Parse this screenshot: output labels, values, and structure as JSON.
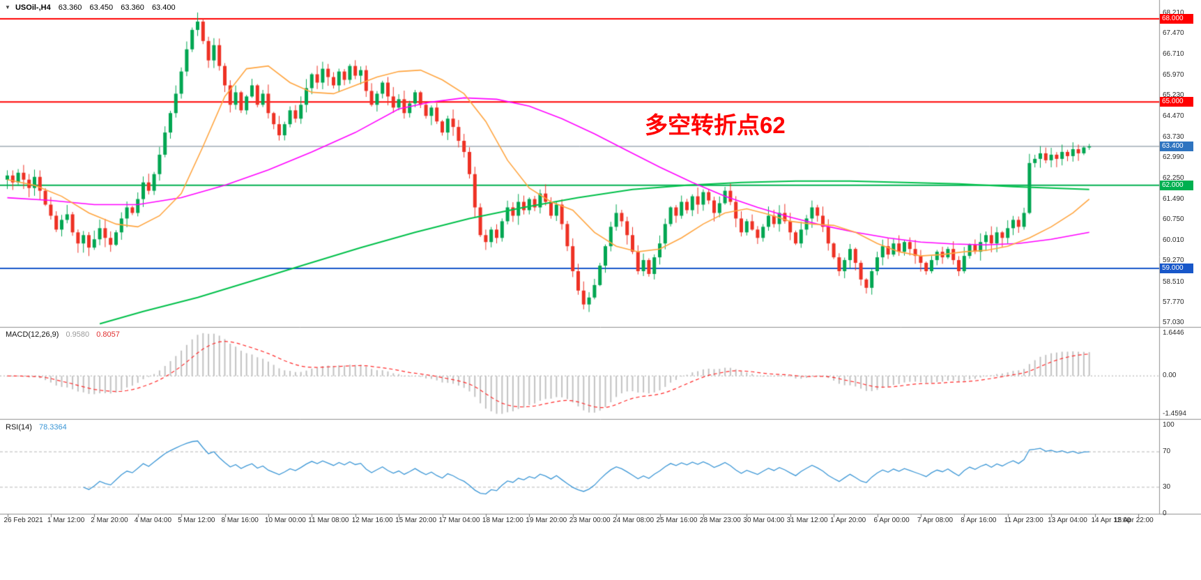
{
  "header": {
    "dropdown_icon": "▼",
    "symbol": "USOil-,H4",
    "open": "63.360",
    "high": "63.450",
    "low": "63.360",
    "close": "63.400"
  },
  "annotation": {
    "text": "多空转折点62",
    "color": "#ff0000"
  },
  "colors": {
    "candle_up": "#00a651",
    "candle_down": "#ee3124",
    "ma_orange": "#ffa53f",
    "ma_magenta": "#ff00ff",
    "ma_green": "#00c04a",
    "macd_histogram": "#c2c2c2",
    "macd_signal": "#ff2a2a",
    "rsi_line": "#3a96d6",
    "current_price_line": "#708090"
  },
  "chart_data": {
    "type": "candlestick",
    "title": "USOil-,H4",
    "timeframe": "H4",
    "quote": {
      "open": 63.36,
      "high": 63.45,
      "low": 63.36,
      "close": 63.4
    },
    "x_labels": [
      "26 Feb 2021",
      "1 Mar 12:00",
      "2 Mar 20:00",
      "4 Mar 04:00",
      "5 Mar 12:00",
      "8 Mar 16:00",
      "10 Mar 00:00",
      "11 Mar 08:00",
      "12 Mar 16:00",
      "15 Mar 20:00",
      "17 Mar 04:00",
      "18 Mar 12:00",
      "19 Mar 20:00",
      "23 Mar 00:00",
      "24 Mar 08:00",
      "25 Mar 16:00",
      "28 Mar 23:00",
      "30 Mar 04:00",
      "31 Mar 12:00",
      "1 Apr 20:00",
      "6 Apr 00:00",
      "7 Apr 08:00",
      "8 Apr 16:00",
      "11 Apr 23:00",
      "13 Apr 04:00",
      "14 Apr 12:00",
      "15 Apr 22:00"
    ],
    "price_axis": {
      "range": [
        56.9,
        68.68
      ],
      "ticks": [
        {
          "label": "68.210",
          "price": 68.21
        },
        {
          "label": "67.470",
          "price": 67.47
        },
        {
          "label": "66.710",
          "price": 66.71
        },
        {
          "label": "65.970",
          "price": 65.97
        },
        {
          "label": "65.230",
          "price": 65.23
        },
        {
          "label": "64.470",
          "price": 64.47
        },
        {
          "label": "63.730",
          "price": 63.73
        },
        {
          "label": "62.990",
          "price": 62.99
        },
        {
          "label": "62.250",
          "price": 62.25
        },
        {
          "label": "61.490",
          "price": 61.49
        },
        {
          "label": "60.750",
          "price": 60.75
        },
        {
          "label": "60.010",
          "price": 60.01
        },
        {
          "label": "59.270",
          "price": 59.27
        },
        {
          "label": "58.510",
          "price": 58.51
        },
        {
          "label": "57.770",
          "price": 57.77
        },
        {
          "label": "57.030",
          "price": 57.03
        }
      ],
      "levels": [
        {
          "label": "68.000",
          "price": 68.0,
          "color": "#ff0000"
        },
        {
          "label": "65.000",
          "price": 65.0,
          "color": "#ff0000"
        },
        {
          "label": "62.000",
          "price": 62.0,
          "color": "#00b050"
        },
        {
          "label": "59.000",
          "price": 59.0,
          "color": "#1857c9"
        }
      ],
      "current": {
        "label": "63.400",
        "price": 63.4,
        "bg": "#2f74c0",
        "line_color": "#708090"
      }
    },
    "candles": {
      "first_open": 62.2,
      "closes": [
        62.35,
        62.1,
        62.45,
        62.2,
        61.9,
        62.3,
        61.8,
        61.3,
        60.9,
        60.4,
        60.75,
        60.95,
        60.3,
        59.9,
        60.2,
        59.75,
        60.05,
        60.45,
        60.1,
        59.85,
        60.3,
        60.8,
        61.2,
        61.0,
        61.5,
        62.1,
        61.8,
        62.4,
        63.1,
        63.9,
        64.6,
        65.3,
        66.1,
        66.9,
        67.6,
        67.9,
        67.2,
        66.5,
        67.05,
        66.3,
        65.6,
        64.9,
        65.35,
        64.7,
        65.2,
        65.6,
        64.9,
        65.3,
        64.6,
        64.2,
        63.8,
        64.2,
        64.7,
        64.4,
        64.9,
        65.5,
        66.0,
        65.7,
        66.2,
        65.9,
        65.6,
        66.1,
        65.8,
        66.3,
        65.95,
        66.15,
        65.4,
        64.9,
        65.3,
        65.7,
        65.2,
        64.8,
        65.1,
        64.6,
        64.95,
        65.35,
        64.9,
        64.5,
        64.8,
        64.3,
        63.9,
        64.4,
        64.1,
        63.6,
        63.2,
        62.4,
        61.2,
        60.2,
        59.95,
        60.4,
        60.1,
        60.7,
        61.2,
        60.9,
        61.4,
        61.1,
        61.5,
        61.2,
        61.7,
        61.4,
        60.9,
        61.3,
        60.6,
        59.8,
        58.9,
        58.2,
        57.7,
        57.95,
        58.4,
        59.1,
        59.8,
        60.5,
        61.0,
        60.7,
        60.2,
        59.6,
        58.9,
        59.3,
        58.8,
        59.4,
        59.9,
        60.6,
        61.2,
        60.9,
        61.4,
        61.1,
        61.6,
        61.3,
        61.75,
        61.45,
        61.0,
        61.35,
        61.8,
        61.4,
        60.8,
        60.3,
        60.7,
        60.4,
        60.1,
        60.5,
        60.9,
        60.6,
        61.0,
        60.7,
        60.3,
        59.9,
        60.4,
        60.8,
        61.2,
        60.9,
        60.5,
        59.9,
        59.4,
        58.9,
        59.3,
        59.7,
        59.2,
        58.6,
        58.3,
        58.9,
        59.4,
        59.8,
        59.5,
        59.9,
        59.6,
        59.95,
        59.7,
        59.45,
        59.2,
        58.9,
        59.3,
        59.6,
        59.4,
        59.7,
        59.3,
        58.9,
        59.45,
        59.85,
        59.6,
        59.95,
        60.2,
        59.9,
        60.3,
        60.1,
        60.45,
        60.75,
        60.5,
        61.0,
        62.8,
        62.95,
        63.15,
        62.9,
        63.1,
        62.95,
        63.2,
        63.05,
        63.3,
        63.15,
        63.36,
        63.4
      ]
    },
    "overlays": {
      "ma_orange": {
        "name": "MA fast (orange)",
        "color": "#ffa53f",
        "width": 1.6,
        "points": [
          [
            0,
            62.2
          ],
          [
            5,
            62.0
          ],
          [
            10,
            61.6
          ],
          [
            15,
            61.0
          ],
          [
            20,
            60.6
          ],
          [
            24,
            60.5
          ],
          [
            28,
            60.9
          ],
          [
            32,
            61.7
          ],
          [
            36,
            63.4
          ],
          [
            40,
            65.2
          ],
          [
            44,
            66.2
          ],
          [
            48,
            66.3
          ],
          [
            52,
            65.7
          ],
          [
            56,
            65.35
          ],
          [
            60,
            65.3
          ],
          [
            64,
            65.6
          ],
          [
            68,
            65.9
          ],
          [
            72,
            66.1
          ],
          [
            76,
            66.15
          ],
          [
            80,
            65.8
          ],
          [
            84,
            65.3
          ],
          [
            88,
            64.3
          ],
          [
            92,
            62.9
          ],
          [
            96,
            61.9
          ],
          [
            100,
            61.4
          ],
          [
            104,
            61.1
          ],
          [
            108,
            60.3
          ],
          [
            112,
            59.8
          ],
          [
            116,
            59.6
          ],
          [
            120,
            59.7
          ],
          [
            124,
            60.1
          ],
          [
            128,
            60.6
          ],
          [
            132,
            61.0
          ],
          [
            136,
            61.15
          ],
          [
            140,
            60.95
          ],
          [
            144,
            60.7
          ],
          [
            148,
            60.6
          ],
          [
            152,
            60.55
          ],
          [
            156,
            60.3
          ],
          [
            160,
            59.9
          ],
          [
            164,
            59.6
          ],
          [
            168,
            59.45
          ],
          [
            172,
            59.5
          ],
          [
            176,
            59.6
          ],
          [
            180,
            59.65
          ],
          [
            184,
            59.8
          ],
          [
            188,
            60.1
          ],
          [
            192,
            60.5
          ],
          [
            196,
            61.0
          ],
          [
            199,
            61.5
          ]
        ]
      },
      "ma_magenta": {
        "name": "MA mid (magenta)",
        "color": "#ff00ff",
        "width": 1.6,
        "points": [
          [
            0,
            61.55
          ],
          [
            8,
            61.45
          ],
          [
            16,
            61.3
          ],
          [
            24,
            61.3
          ],
          [
            32,
            61.55
          ],
          [
            40,
            62.0
          ],
          [
            48,
            62.55
          ],
          [
            56,
            63.2
          ],
          [
            64,
            63.9
          ],
          [
            72,
            64.75
          ],
          [
            78,
            65.0
          ],
          [
            84,
            65.15
          ],
          [
            90,
            65.1
          ],
          [
            96,
            64.85
          ],
          [
            102,
            64.4
          ],
          [
            108,
            63.85
          ],
          [
            114,
            63.25
          ],
          [
            120,
            62.65
          ],
          [
            126,
            62.1
          ],
          [
            132,
            61.6
          ],
          [
            138,
            61.2
          ],
          [
            144,
            60.85
          ],
          [
            150,
            60.55
          ],
          [
            156,
            60.3
          ],
          [
            162,
            60.1
          ],
          [
            168,
            59.95
          ],
          [
            174,
            59.88
          ],
          [
            180,
            59.85
          ],
          [
            186,
            59.9
          ],
          [
            192,
            60.05
          ],
          [
            199,
            60.3
          ]
        ]
      },
      "ma_green": {
        "name": "MA slow (green)",
        "color": "#00c04a",
        "width": 2,
        "points": [
          [
            17,
            57.0
          ],
          [
            25,
            57.45
          ],
          [
            35,
            57.95
          ],
          [
            45,
            58.55
          ],
          [
            55,
            59.15
          ],
          [
            65,
            59.75
          ],
          [
            75,
            60.3
          ],
          [
            85,
            60.8
          ],
          [
            95,
            61.2
          ],
          [
            105,
            61.55
          ],
          [
            115,
            61.85
          ],
          [
            125,
            62.0
          ],
          [
            135,
            62.1
          ],
          [
            145,
            62.15
          ],
          [
            155,
            62.15
          ],
          [
            165,
            62.1
          ],
          [
            175,
            62.05
          ],
          [
            185,
            61.95
          ],
          [
            199,
            61.85
          ]
        ]
      }
    },
    "indicators": {
      "macd": {
        "label": "MACD(12,26,9)",
        "value_main": "0.9580",
        "value_signal": "0.8057",
        "params": [
          12,
          26,
          9
        ],
        "axis_labels": [
          "1.6446",
          "0.00",
          "-1.4594"
        ],
        "axis_values": [
          1.6446,
          0,
          -1.4594
        ],
        "range": [
          -1.55,
          1.75
        ]
      },
      "rsi": {
        "label": "RSI(14)",
        "value": "78.3364",
        "period": 14,
        "axis": [
          100,
          70,
          30,
          0
        ],
        "guides": [
          70,
          30
        ]
      }
    }
  }
}
